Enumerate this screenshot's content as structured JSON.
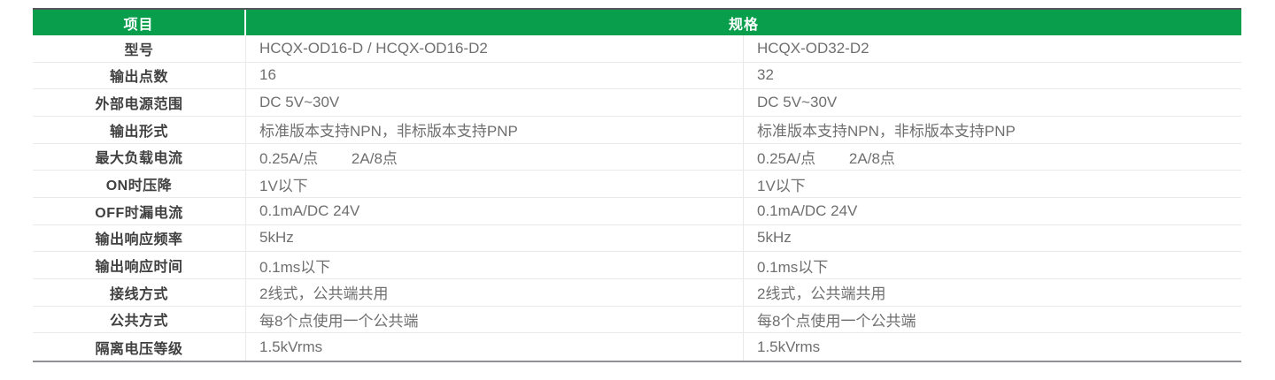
{
  "table": {
    "header": {
      "item_label": "项目",
      "spec_label": "规格"
    },
    "rows": [
      {
        "label": "型号",
        "spec1": "HCQX-OD16-D / HCQX-OD16-D2",
        "spec2": "HCQX-OD32-D2"
      },
      {
        "label": "输出点数",
        "spec1": "16",
        "spec2": "32"
      },
      {
        "label": "外部电源范围",
        "spec1": "DC 5V~30V",
        "spec2": "DC 5V~30V"
      },
      {
        "label": "输出形式",
        "spec1": "标准版本支持NPN，非标版本支持PNP",
        "spec2": "标准版本支持NPN，非标版本支持PNP"
      },
      {
        "label": "最大负载电流",
        "spec1": "0.25A/点        2A/8点",
        "spec2": "0.25A/点        2A/8点"
      },
      {
        "label": "ON时压降",
        "spec1": "1V以下",
        "spec2": "1V以下"
      },
      {
        "label": "OFF时漏电流",
        "spec1": "0.1mA/DC 24V",
        "spec2": "0.1mA/DC 24V"
      },
      {
        "label": "输出响应频率",
        "spec1": "5kHz",
        "spec2": "5kHz"
      },
      {
        "label": "输出响应时间",
        "spec1": "0.1ms以下",
        "spec2": "0.1ms以下"
      },
      {
        "label": "接线方式",
        "spec1": "2线式，公共端共用",
        "spec2": "2线式，公共端共用"
      },
      {
        "label": "公共方式",
        "spec1": "每8个点使用一个公共端",
        "spec2": "每8个点使用一个公共端"
      },
      {
        "label": "隔离电压等级",
        "spec1": "1.5kVrms",
        "spec2": "1.5kVrms"
      }
    ],
    "colors": {
      "header_green": "#089e4c",
      "top_border": "#55565a",
      "bottom_border": "#8e9093",
      "row_divider": "#e9e9e9",
      "label_text": "#404040",
      "value_text": "#6f6f6f",
      "header_text": "#ffffff"
    }
  }
}
